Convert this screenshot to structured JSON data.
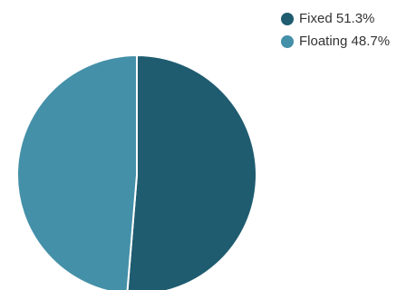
{
  "chart_data": {
    "type": "pie",
    "title": "",
    "series": [
      {
        "name": "Fixed",
        "value": 51.3,
        "color": "#1f5c70"
      },
      {
        "name": "Floating",
        "value": 48.7,
        "color": "#4490a8"
      }
    ],
    "legend": {
      "placement": "top-right",
      "items": [
        {
          "label": "Fixed 51.3%",
          "color": "#1f5c70"
        },
        {
          "label": "Floating 48.7%",
          "color": "#4490a8"
        }
      ]
    }
  }
}
